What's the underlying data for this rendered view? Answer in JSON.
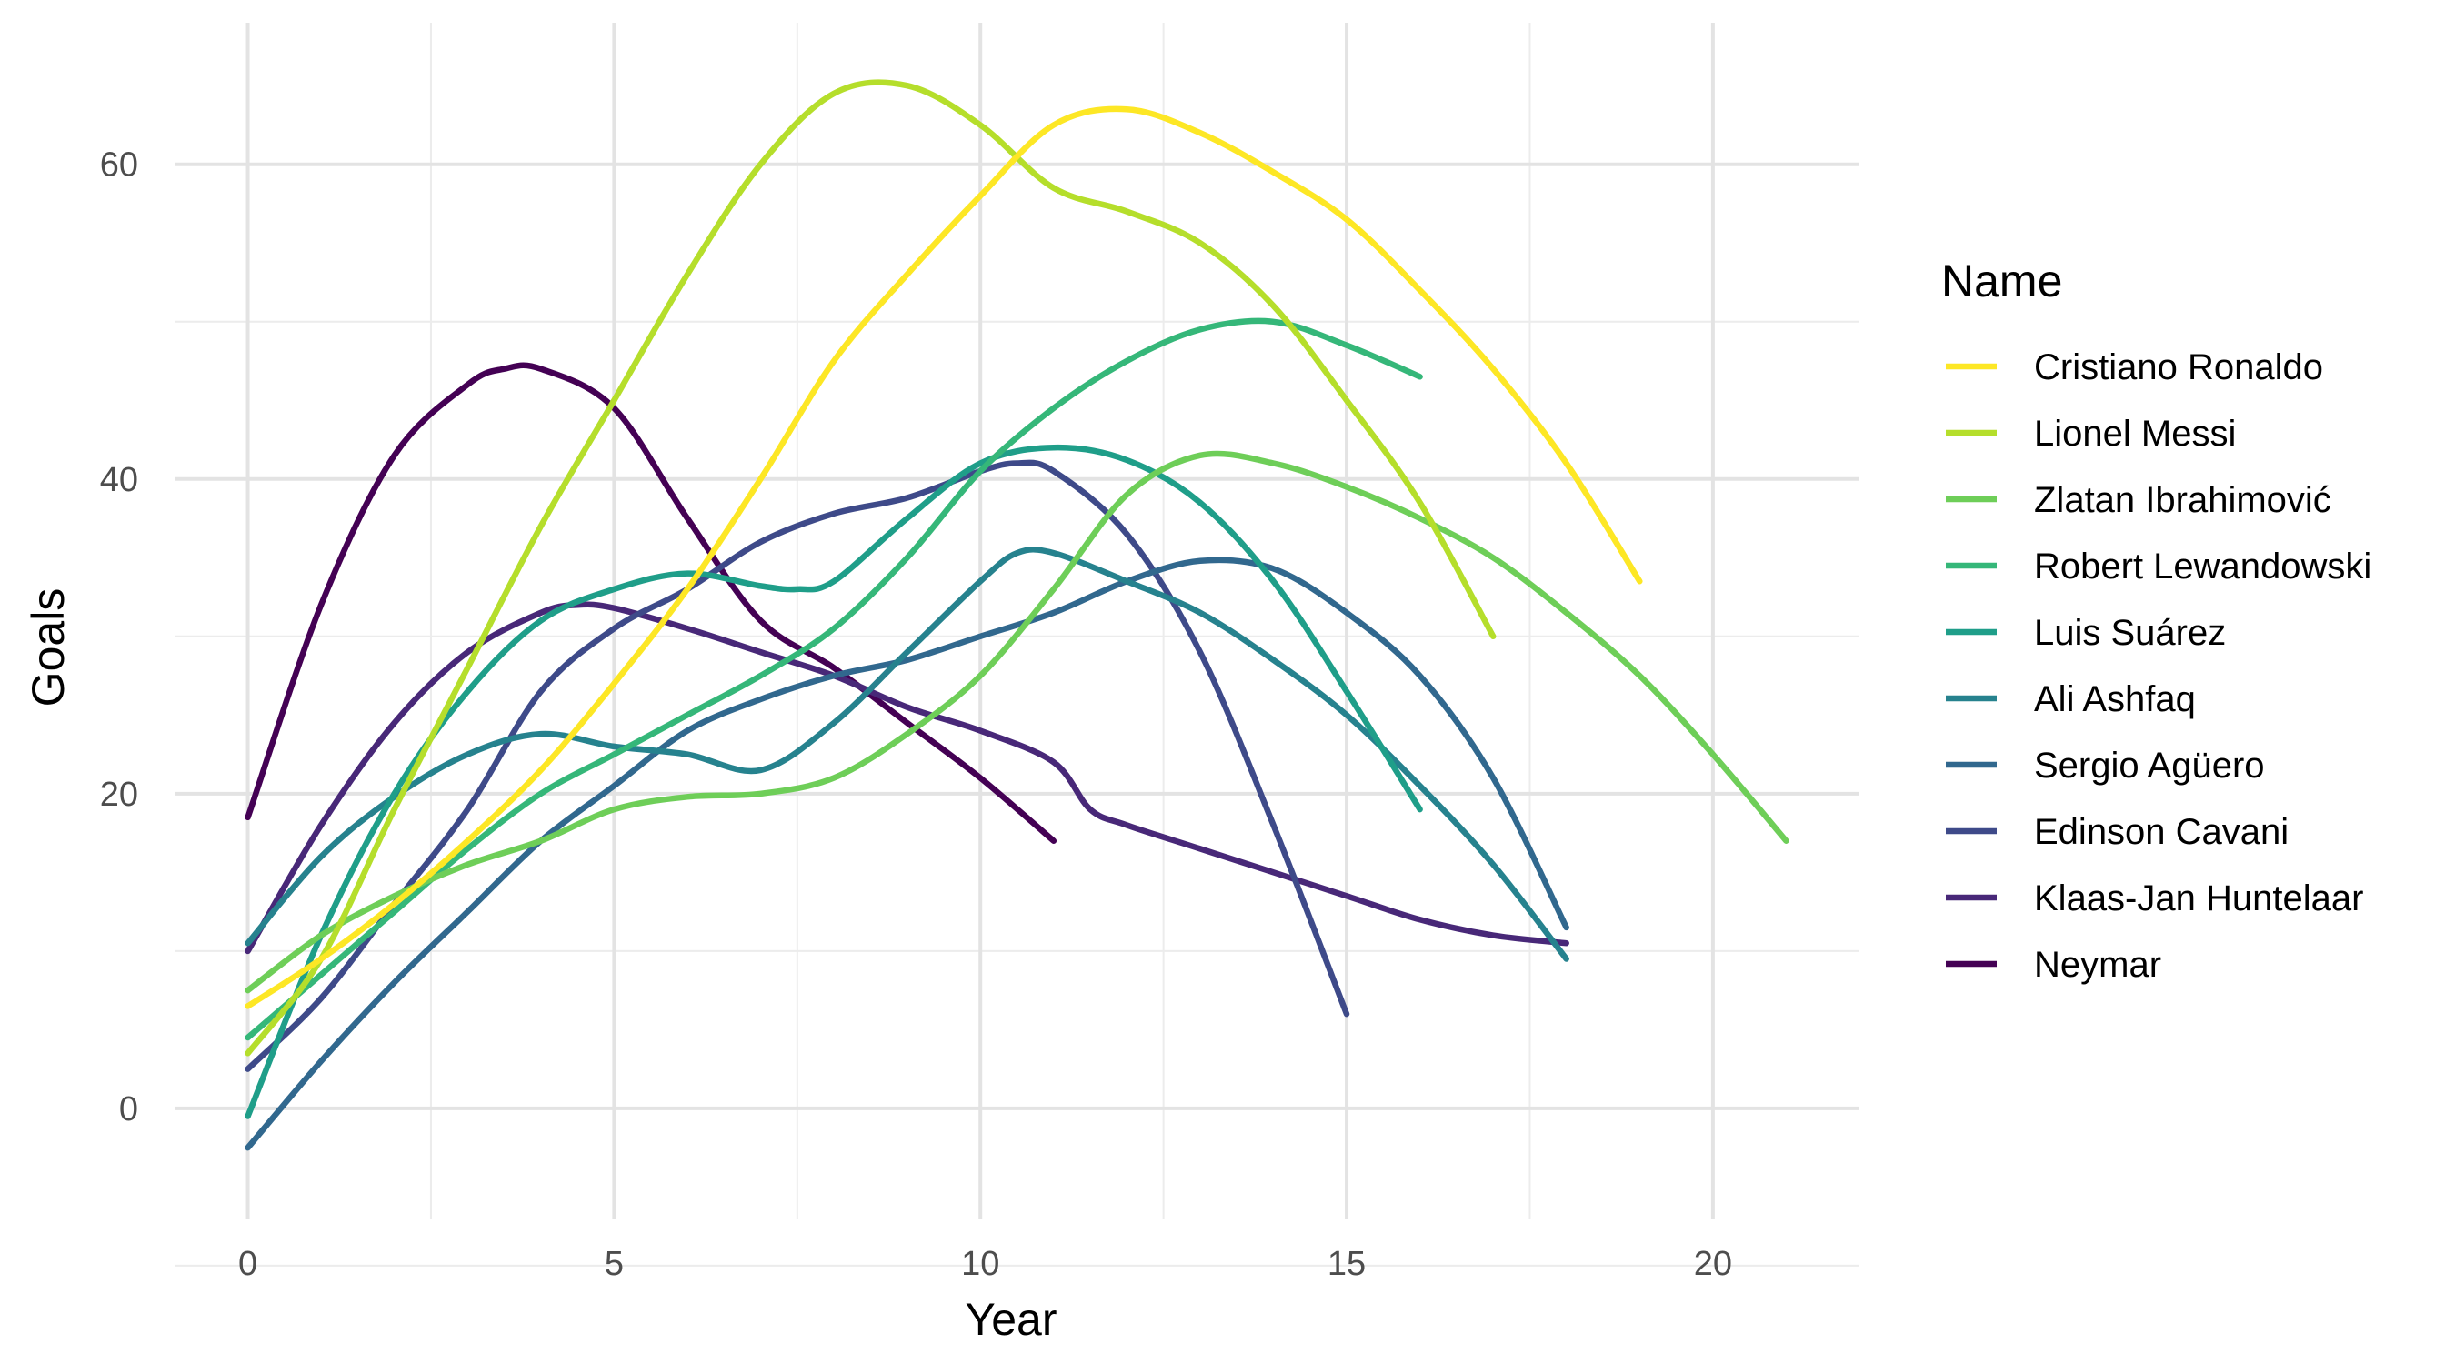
{
  "chart_data": {
    "type": "line",
    "xlabel": "Year",
    "ylabel": "Goals",
    "xlim": [
      -1,
      22
    ],
    "ylim": [
      -7,
      69
    ],
    "x_ticks": [
      "0",
      "5",
      "10",
      "15",
      "20"
    ],
    "y_ticks": [
      "0",
      "20",
      "40",
      "60"
    ],
    "grid": true,
    "legend": {
      "title": "Name",
      "position": "right"
    },
    "series": [
      {
        "name": "Cristiano Ronaldo",
        "color": "#FDE725",
        "x": [
          0,
          1,
          2,
          3,
          4,
          5,
          6,
          7,
          8,
          9,
          10,
          11,
          12,
          13,
          14,
          15,
          16,
          17,
          18,
          19
        ],
        "y": [
          6.5,
          9.5,
          13,
          17,
          21.5,
          27,
          33,
          40,
          47.5,
          53,
          58,
          62.5,
          63.5,
          62,
          59.5,
          56.5,
          52,
          47,
          41,
          33.5
        ]
      },
      {
        "name": "Lionel Messi",
        "color": "#B5DE2B",
        "x": [
          0,
          1,
          2,
          3,
          4,
          5,
          6,
          7,
          8,
          9,
          10,
          11,
          12,
          13,
          14,
          15,
          16,
          17
        ],
        "y": [
          3.5,
          9.5,
          19,
          28,
          37,
          45,
          53,
          60,
          64.5,
          65,
          62.5,
          58.5,
          57,
          55,
          51,
          45,
          38.5,
          30
        ]
      },
      {
        "name": "Zlatan Ibrahimović",
        "color": "#6ECE58",
        "x": [
          0,
          1,
          2,
          3,
          4,
          5,
          6,
          7,
          8,
          9,
          10,
          11,
          12,
          13,
          14,
          15,
          16,
          17,
          18,
          19,
          20,
          21
        ],
        "y": [
          7.5,
          11,
          13.5,
          15.5,
          17,
          19,
          19.8,
          20,
          21,
          23.8,
          27.5,
          33,
          39,
          41.5,
          41,
          39.5,
          37.5,
          35,
          31.5,
          27.5,
          22.5,
          17
        ]
      },
      {
        "name": "Robert Lewandowski",
        "color": "#35B779",
        "x": [
          0,
          1,
          2,
          3,
          4,
          5,
          6,
          7,
          8,
          9,
          10,
          11,
          12,
          13,
          14,
          15,
          16
        ],
        "y": [
          4.5,
          8.5,
          12.5,
          16.5,
          20,
          22.5,
          25,
          27.5,
          30.5,
          35,
          40.5,
          44.5,
          47.5,
          49.5,
          50,
          48.5,
          46.5
        ]
      },
      {
        "name": "Luis Suárez",
        "color": "#1F9E89",
        "x": [
          0,
          1,
          2,
          3,
          4,
          5,
          6,
          7,
          7.5,
          8,
          9,
          10,
          11,
          12,
          13,
          14,
          15,
          16
        ],
        "y": [
          -0.5,
          11,
          20,
          26.5,
          31,
          33,
          34,
          33.2,
          33,
          33.5,
          37.5,
          41,
          42,
          41.2,
          38.5,
          33.5,
          26.5,
          19
        ]
      },
      {
        "name": "Ali Ashfaq",
        "color": "#26828E",
        "x": [
          0,
          1,
          2,
          3,
          4,
          5,
          6,
          7,
          8,
          9,
          10,
          10.5,
          11,
          12,
          13,
          14,
          15,
          16,
          17,
          18
        ],
        "y": [
          10.5,
          16,
          19.8,
          22.5,
          23.8,
          23,
          22.5,
          21.5,
          24.5,
          29,
          33.5,
          35.3,
          35.3,
          33.5,
          31.5,
          28.5,
          25,
          20.5,
          15.5,
          9.5
        ]
      },
      {
        "name": "Sergio Agüero",
        "color": "#31688E",
        "x": [
          0,
          1,
          2,
          3,
          4,
          5,
          6,
          7,
          8,
          9,
          10,
          11,
          12,
          13,
          14,
          15,
          16,
          17,
          18
        ],
        "y": [
          -2.5,
          3,
          8,
          12.5,
          17,
          20.5,
          24,
          26,
          27.5,
          28.5,
          30,
          31.5,
          33.5,
          34.8,
          34.3,
          31.5,
          27.5,
          21,
          11.5
        ]
      },
      {
        "name": "Edinson Cavani",
        "color": "#3E4A89",
        "x": [
          0,
          1,
          2,
          3,
          4,
          5,
          6,
          7,
          8,
          9,
          10,
          10.5,
          11,
          12,
          13,
          14,
          15
        ],
        "y": [
          2.5,
          7,
          13,
          19,
          26.5,
          30.5,
          33,
          36,
          37.8,
          38.8,
          40.5,
          41,
          40.5,
          36.5,
          29,
          18,
          6
        ]
      },
      {
        "name": "Klaas-Jan Huntelaar",
        "color": "#482878",
        "x": [
          0,
          1,
          2,
          3,
          4,
          4.5,
          5,
          6,
          7,
          8,
          9,
          10,
          11,
          11.5,
          12,
          13,
          14,
          15,
          16,
          17,
          18
        ],
        "y": [
          10,
          18,
          24.5,
          29,
          31.5,
          32,
          31.8,
          30.5,
          29,
          27.5,
          25.5,
          24,
          22,
          19,
          18,
          16.5,
          15,
          13.5,
          12,
          11,
          10.5
        ]
      },
      {
        "name": "Neymar",
        "color": "#440154",
        "x": [
          0,
          1,
          2,
          3,
          3.5,
          4,
          5,
          6,
          7,
          8,
          9,
          10,
          11
        ],
        "y": [
          18.5,
          32,
          41.5,
          46,
          47,
          47,
          44.5,
          37.5,
          31,
          28,
          24.5,
          21,
          17
        ]
      }
    ]
  }
}
